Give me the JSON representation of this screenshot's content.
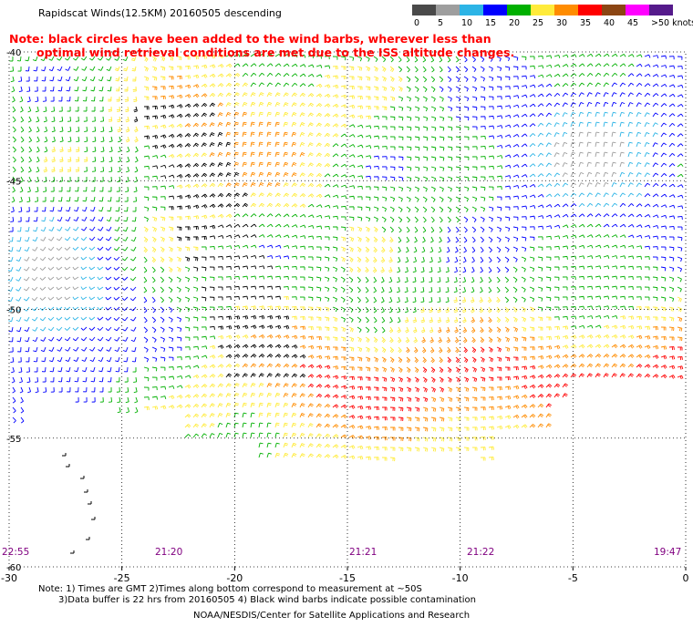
{
  "title": "Rapidscat Winds(12.5KM) 20160505 descending",
  "note_line1": "Note: black circles have been added to the wind barbs, wherever less than",
  "note_line2": "optimal wind retrieval conditions are met due to the ISS altitude changes.",
  "legend": {
    "labels": [
      "0",
      "5",
      "10",
      "15",
      "20",
      "25",
      "30",
      "35",
      "40",
      "45",
      ">50 knots"
    ],
    "colors": [
      "#4a4a4a",
      "#9e9e9e",
      "#2cb4e6",
      "#0000ff",
      "#00b000",
      "#ffeb3b",
      "#ff8c00",
      "#ff0000",
      "#8b4513",
      "#ff00ff",
      "#551a8b"
    ]
  },
  "map": {
    "lon_range": [
      -30,
      0
    ],
    "lat_range": [
      -60,
      -40
    ],
    "lon_ticks": [
      "-30",
      "-25",
      "-20",
      "-15",
      "-10",
      "-5",
      "0"
    ],
    "lat_ticks": [
      "-40",
      "-45",
      "-50",
      "-55",
      "-60"
    ],
    "pass_times": [
      "22:55",
      "21:20",
      "21:21",
      "21:22",
      "19:47"
    ]
  },
  "footer": {
    "line1": "Note: 1) Times are GMT 2)Times along bottom correspond to measurement at ~50S",
    "line2": "3)Data buffer is 22 hrs from 20160505 4) Black wind barbs indicate possible contamination",
    "line3": "NOAA/NESDIS/Center for Satellite Applications and Research"
  }
}
